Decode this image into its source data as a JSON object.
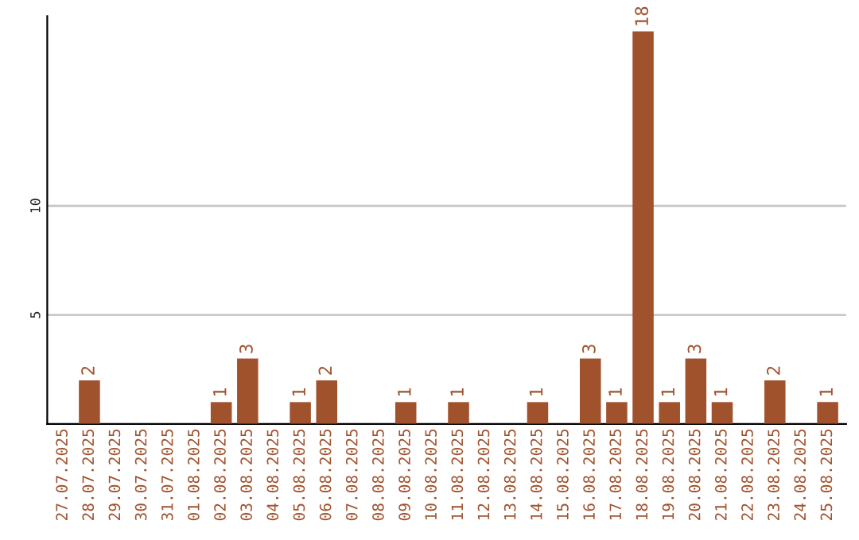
{
  "chart_data": {
    "type": "bar",
    "categories": [
      "27.07.2025",
      "28.07.2025",
      "29.07.2025",
      "30.07.2025",
      "31.07.2025",
      "01.08.2025",
      "02.08.2025",
      "03.08.2025",
      "04.08.2025",
      "05.08.2025",
      "06.08.2025",
      "07.08.2025",
      "08.08.2025",
      "09.08.2025",
      "10.08.2025",
      "11.08.2025",
      "12.08.2025",
      "13.08.2025",
      "14.08.2025",
      "15.08.2025",
      "16.08.2025",
      "17.08.2025",
      "18.08.2025",
      "19.08.2025",
      "20.08.2025",
      "21.08.2025",
      "22.08.2025",
      "23.08.2025",
      "24.08.2025",
      "25.08.2025"
    ],
    "values": [
      0,
      2,
      0,
      0,
      0,
      0,
      1,
      3,
      0,
      1,
      2,
      0,
      0,
      1,
      0,
      1,
      0,
      0,
      1,
      0,
      3,
      1,
      18,
      1,
      3,
      1,
      0,
      2,
      0,
      1
    ],
    "value_labels": [
      null,
      "2",
      null,
      null,
      null,
      null,
      "1",
      "3",
      null,
      "1",
      "2",
      null,
      null,
      "1",
      null,
      "1",
      null,
      null,
      "1",
      null,
      "3",
      "1",
      "18",
      "1",
      "3",
      "1",
      null,
      "2",
      null,
      "1"
    ],
    "color": "#a0522d",
    "ylim": [
      0,
      18.7
    ],
    "yticks": [
      5,
      10
    ],
    "grid": "y"
  }
}
